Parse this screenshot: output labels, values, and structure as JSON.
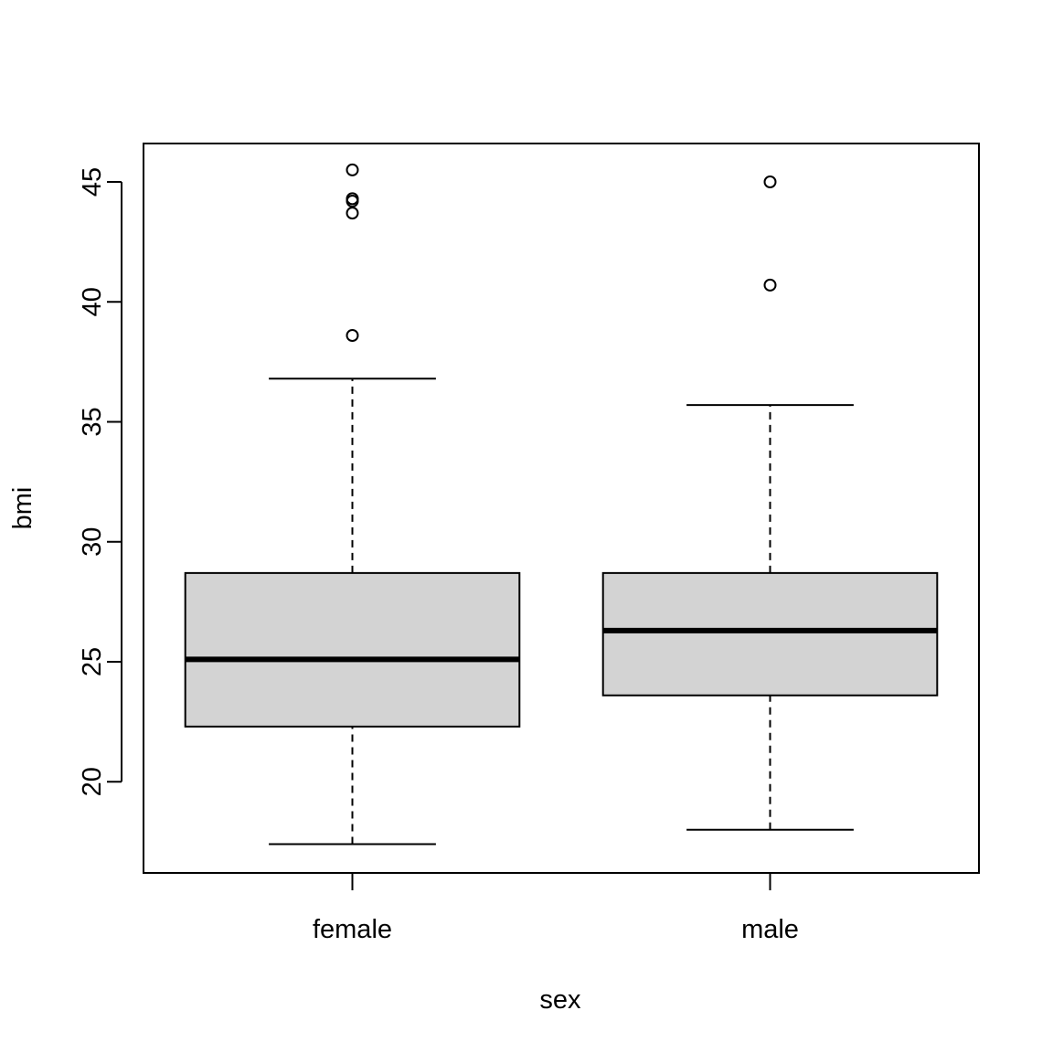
{
  "chart_data": {
    "type": "boxplot",
    "title": "",
    "xlabel": "sex",
    "ylabel": "bmi",
    "ylim": [
      16.2,
      46.6
    ],
    "yticks": [
      20,
      25,
      30,
      35,
      40,
      45
    ],
    "grid": false,
    "categories": [
      "female",
      "male"
    ],
    "boxes": [
      {
        "category": "female",
        "whisker_low": 17.4,
        "q1": 22.3,
        "median": 25.1,
        "q3": 28.7,
        "whisker_high": 36.8,
        "outliers": [
          45.5,
          44.3,
          44.2,
          43.7,
          38.6
        ]
      },
      {
        "category": "male",
        "whisker_low": 18.0,
        "q1": 23.6,
        "median": 26.3,
        "q3": 28.7,
        "whisker_high": 35.7,
        "outliers": [
          45.0,
          40.7
        ]
      }
    ],
    "colors": {
      "box_fill": "#d3d3d3",
      "line": "#000000"
    }
  }
}
